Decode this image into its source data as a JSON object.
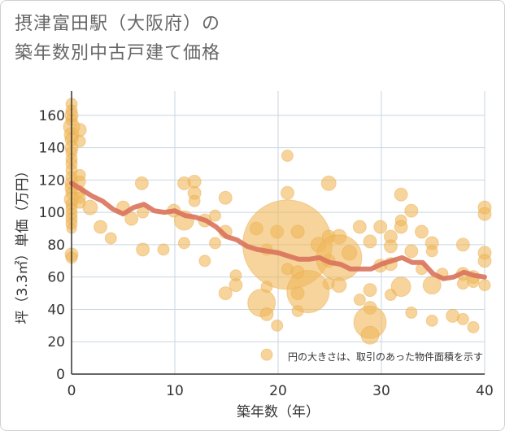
{
  "title_line1": "摂津富田駅（大阪府）の",
  "title_line2": "築年数別中古戸建て価格",
  "chart_data": {
    "type": "scatter",
    "xlabel": "築年数（年）",
    "ylabel": "坪（3.3㎡）単価（万円）",
    "xlim": [
      0,
      40
    ],
    "ylim": [
      0,
      175
    ],
    "xticks": [
      0,
      10,
      20,
      30,
      40
    ],
    "yticks": [
      0,
      20,
      40,
      60,
      80,
      100,
      120,
      140,
      160
    ],
    "grid": true,
    "annotation": "円の大きさは、取引のあった物件面積を示す",
    "colors": {
      "bubble": "#f0b85a",
      "bubble_stroke": "#e8a53c",
      "line": "#d9735c",
      "grid": "#c8d6e2",
      "axis": "#333333"
    },
    "points": [
      {
        "x": 0,
        "y": 167,
        "s": 7
      },
      {
        "x": 0,
        "y": 163,
        "s": 7
      },
      {
        "x": 0,
        "y": 160,
        "s": 8
      },
      {
        "x": 0,
        "y": 157,
        "s": 7
      },
      {
        "x": 0,
        "y": 153,
        "s": 10
      },
      {
        "x": 0,
        "y": 148,
        "s": 9
      },
      {
        "x": 0,
        "y": 145,
        "s": 8
      },
      {
        "x": 0,
        "y": 140,
        "s": 8
      },
      {
        "x": 0,
        "y": 137,
        "s": 7
      },
      {
        "x": 0,
        "y": 133,
        "s": 7
      },
      {
        "x": 0,
        "y": 130,
        "s": 7
      },
      {
        "x": 0,
        "y": 126,
        "s": 7
      },
      {
        "x": 0,
        "y": 122,
        "s": 7
      },
      {
        "x": 0,
        "y": 118,
        "s": 8
      },
      {
        "x": 0,
        "y": 115,
        "s": 8
      },
      {
        "x": 0,
        "y": 112,
        "s": 7
      },
      {
        "x": 0,
        "y": 108,
        "s": 9
      },
      {
        "x": 0,
        "y": 105,
        "s": 7
      },
      {
        "x": 0,
        "y": 102,
        "s": 7
      },
      {
        "x": 0,
        "y": 99,
        "s": 7
      },
      {
        "x": 0,
        "y": 96,
        "s": 7
      },
      {
        "x": 0,
        "y": 93,
        "s": 7
      },
      {
        "x": 0,
        "y": 90,
        "s": 6
      },
      {
        "x": 0,
        "y": 74,
        "s": 8
      },
      {
        "x": 0,
        "y": 72,
        "s": 7
      },
      {
        "x": 0.8,
        "y": 151,
        "s": 8
      },
      {
        "x": 0.8,
        "y": 144,
        "s": 7
      },
      {
        "x": 0.8,
        "y": 123,
        "s": 7
      },
      {
        "x": 0.8,
        "y": 119,
        "s": 7
      },
      {
        "x": 0.8,
        "y": 113,
        "s": 7
      },
      {
        "x": 0.8,
        "y": 109,
        "s": 7
      },
      {
        "x": 0.8,
        "y": 106,
        "s": 7
      },
      {
        "x": 1.8,
        "y": 103,
        "s": 9
      },
      {
        "x": 2.8,
        "y": 91,
        "s": 8
      },
      {
        "x": 3.8,
        "y": 84,
        "s": 7
      },
      {
        "x": 5,
        "y": 103,
        "s": 8
      },
      {
        "x": 5.8,
        "y": 96,
        "s": 8
      },
      {
        "x": 6.8,
        "y": 118,
        "s": 8
      },
      {
        "x": 6.9,
        "y": 100,
        "s": 7
      },
      {
        "x": 6.9,
        "y": 77,
        "s": 8
      },
      {
        "x": 8.9,
        "y": 77,
        "s": 7
      },
      {
        "x": 9.9,
        "y": 101,
        "s": 8
      },
      {
        "x": 10.9,
        "y": 118,
        "s": 8
      },
      {
        "x": 10.9,
        "y": 95,
        "s": 12
      },
      {
        "x": 10.9,
        "y": 81,
        "s": 7
      },
      {
        "x": 11.9,
        "y": 119,
        "s": 8
      },
      {
        "x": 11.9,
        "y": 112,
        "s": 8
      },
      {
        "x": 11.9,
        "y": 107,
        "s": 7
      },
      {
        "x": 12.9,
        "y": 95,
        "s": 8
      },
      {
        "x": 12.9,
        "y": 70,
        "s": 7
      },
      {
        "x": 13.9,
        "y": 98,
        "s": 7
      },
      {
        "x": 13.9,
        "y": 81,
        "s": 7
      },
      {
        "x": 14.9,
        "y": 109,
        "s": 8
      },
      {
        "x": 14.9,
        "y": 88,
        "s": 8
      },
      {
        "x": 14.9,
        "y": 50,
        "s": 8
      },
      {
        "x": 15.9,
        "y": 61,
        "s": 7
      },
      {
        "x": 15.9,
        "y": 55,
        "s": 8
      },
      {
        "x": 17.9,
        "y": 90,
        "s": 8
      },
      {
        "x": 18.4,
        "y": 44,
        "s": 17
      },
      {
        "x": 18.9,
        "y": 77,
        "s": 7
      },
      {
        "x": 18.9,
        "y": 54,
        "s": 7
      },
      {
        "x": 18.9,
        "y": 37,
        "s": 8
      },
      {
        "x": 18.9,
        "y": 12,
        "s": 7
      },
      {
        "x": 19.9,
        "y": 88,
        "s": 8
      },
      {
        "x": 19.9,
        "y": 30,
        "s": 7
      },
      {
        "x": 20.9,
        "y": 80,
        "s": 55
      },
      {
        "x": 20.9,
        "y": 135,
        "s": 7
      },
      {
        "x": 20.9,
        "y": 112,
        "s": 8
      },
      {
        "x": 20.9,
        "y": 65,
        "s": 7
      },
      {
        "x": 21.9,
        "y": 88,
        "s": 8
      },
      {
        "x": 21.9,
        "y": 63,
        "s": 8
      },
      {
        "x": 21.9,
        "y": 50,
        "s": 8
      },
      {
        "x": 21.9,
        "y": 39,
        "s": 7
      },
      {
        "x": 22.9,
        "y": 51,
        "s": 26
      },
      {
        "x": 23.9,
        "y": 80,
        "s": 9
      },
      {
        "x": 24.9,
        "y": 118,
        "s": 9
      },
      {
        "x": 24.9,
        "y": 85,
        "s": 8
      },
      {
        "x": 24.9,
        "y": 70,
        "s": 8
      },
      {
        "x": 24.9,
        "y": 56,
        "s": 7
      },
      {
        "x": 25.9,
        "y": 85,
        "s": 9
      },
      {
        "x": 25.9,
        "y": 72,
        "s": 28
      },
      {
        "x": 25.9,
        "y": 55,
        "s": 9
      },
      {
        "x": 26.9,
        "y": 75,
        "s": 9
      },
      {
        "x": 27.9,
        "y": 91,
        "s": 8
      },
      {
        "x": 27.9,
        "y": 46,
        "s": 7
      },
      {
        "x": 28.9,
        "y": 82,
        "s": 8
      },
      {
        "x": 28.9,
        "y": 52,
        "s": 8
      },
      {
        "x": 28.9,
        "y": 41,
        "s": 8
      },
      {
        "x": 28.9,
        "y": 32,
        "s": 20
      },
      {
        "x": 28.9,
        "y": 24,
        "s": 11
      },
      {
        "x": 29.9,
        "y": 91,
        "s": 8
      },
      {
        "x": 29.9,
        "y": 67,
        "s": 8
      },
      {
        "x": 30.9,
        "y": 85,
        "s": 8
      },
      {
        "x": 30.9,
        "y": 79,
        "s": 8
      },
      {
        "x": 30.9,
        "y": 68,
        "s": 8
      },
      {
        "x": 30.9,
        "y": 49,
        "s": 7
      },
      {
        "x": 31.9,
        "y": 111,
        "s": 8
      },
      {
        "x": 31.9,
        "y": 95,
        "s": 7
      },
      {
        "x": 31.9,
        "y": 91,
        "s": 8
      },
      {
        "x": 31.9,
        "y": 54,
        "s": 12
      },
      {
        "x": 32.9,
        "y": 101,
        "s": 8
      },
      {
        "x": 32.9,
        "y": 76,
        "s": 8
      },
      {
        "x": 32.9,
        "y": 38,
        "s": 7
      },
      {
        "x": 33.9,
        "y": 88,
        "s": 8
      },
      {
        "x": 33.9,
        "y": 65,
        "s": 7
      },
      {
        "x": 34.9,
        "y": 81,
        "s": 8
      },
      {
        "x": 34.9,
        "y": 76,
        "s": 7
      },
      {
        "x": 34.9,
        "y": 55,
        "s": 11
      },
      {
        "x": 34.9,
        "y": 33,
        "s": 7
      },
      {
        "x": 35.9,
        "y": 62,
        "s": 7
      },
      {
        "x": 36.9,
        "y": 36,
        "s": 8
      },
      {
        "x": 37.9,
        "y": 80,
        "s": 8
      },
      {
        "x": 37.9,
        "y": 62,
        "s": 8
      },
      {
        "x": 37.9,
        "y": 56,
        "s": 7
      },
      {
        "x": 37.9,
        "y": 34,
        "s": 7
      },
      {
        "x": 38.9,
        "y": 60,
        "s": 8
      },
      {
        "x": 38.9,
        "y": 57,
        "s": 7
      },
      {
        "x": 38.9,
        "y": 29,
        "s": 7
      },
      {
        "x": 40,
        "y": 103,
        "s": 8
      },
      {
        "x": 40,
        "y": 99,
        "s": 8
      },
      {
        "x": 40,
        "y": 75,
        "s": 8
      },
      {
        "x": 40,
        "y": 70,
        "s": 8
      },
      {
        "x": 40,
        "y": 55,
        "s": 7
      }
    ],
    "trend": [
      {
        "x": 0,
        "y": 118
      },
      {
        "x": 1,
        "y": 114
      },
      {
        "x": 2,
        "y": 110
      },
      {
        "x": 3,
        "y": 107
      },
      {
        "x": 4,
        "y": 102
      },
      {
        "x": 5,
        "y": 99
      },
      {
        "x": 6,
        "y": 103
      },
      {
        "x": 7,
        "y": 105
      },
      {
        "x": 8,
        "y": 101
      },
      {
        "x": 9,
        "y": 100
      },
      {
        "x": 10,
        "y": 101
      },
      {
        "x": 11,
        "y": 98
      },
      {
        "x": 12,
        "y": 97
      },
      {
        "x": 13,
        "y": 95
      },
      {
        "x": 14,
        "y": 91
      },
      {
        "x": 15,
        "y": 85
      },
      {
        "x": 16,
        "y": 83
      },
      {
        "x": 17,
        "y": 79
      },
      {
        "x": 18,
        "y": 77
      },
      {
        "x": 19,
        "y": 76
      },
      {
        "x": 20,
        "y": 75
      },
      {
        "x": 21,
        "y": 73
      },
      {
        "x": 22,
        "y": 71
      },
      {
        "x": 23,
        "y": 71
      },
      {
        "x": 24,
        "y": 72
      },
      {
        "x": 25,
        "y": 69
      },
      {
        "x": 26,
        "y": 68
      },
      {
        "x": 27,
        "y": 65
      },
      {
        "x": 28,
        "y": 65
      },
      {
        "x": 29,
        "y": 65
      },
      {
        "x": 30,
        "y": 68
      },
      {
        "x": 31,
        "y": 70
      },
      {
        "x": 32,
        "y": 72
      },
      {
        "x": 33,
        "y": 69
      },
      {
        "x": 34,
        "y": 69
      },
      {
        "x": 35,
        "y": 62
      },
      {
        "x": 36,
        "y": 59
      },
      {
        "x": 37,
        "y": 60
      },
      {
        "x": 38,
        "y": 63
      },
      {
        "x": 39,
        "y": 61
      },
      {
        "x": 40,
        "y": 60
      }
    ]
  }
}
